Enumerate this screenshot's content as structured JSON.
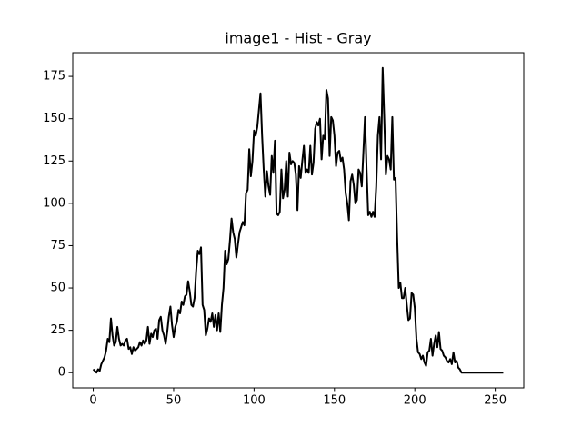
{
  "chart_data": {
    "type": "line",
    "title": "image1 - Hist - Gray",
    "x": [
      0,
      1,
      2,
      3,
      4,
      5,
      6,
      7,
      8,
      9,
      10,
      11,
      12,
      13,
      14,
      15,
      16,
      17,
      18,
      19,
      20,
      21,
      22,
      23,
      24,
      25,
      26,
      27,
      28,
      29,
      30,
      31,
      32,
      33,
      34,
      35,
      36,
      37,
      38,
      39,
      40,
      41,
      42,
      43,
      44,
      45,
      46,
      47,
      48,
      49,
      50,
      51,
      52,
      53,
      54,
      55,
      56,
      57,
      58,
      59,
      60,
      61,
      62,
      63,
      64,
      65,
      66,
      67,
      68,
      69,
      70,
      71,
      72,
      73,
      74,
      75,
      76,
      77,
      78,
      79,
      80,
      81,
      82,
      83,
      84,
      85,
      86,
      87,
      88,
      89,
      90,
      91,
      92,
      93,
      94,
      95,
      96,
      97,
      98,
      99,
      100,
      101,
      102,
      103,
      104,
      105,
      106,
      107,
      108,
      109,
      110,
      111,
      112,
      113,
      114,
      115,
      116,
      117,
      118,
      119,
      120,
      121,
      122,
      123,
      124,
      125,
      126,
      127,
      128,
      129,
      130,
      131,
      132,
      133,
      134,
      135,
      136,
      137,
      138,
      139,
      140,
      141,
      142,
      143,
      144,
      145,
      146,
      147,
      148,
      149,
      150,
      151,
      152,
      153,
      154,
      155,
      156,
      157,
      158,
      159,
      160,
      161,
      162,
      163,
      164,
      165,
      166,
      167,
      168,
      169,
      170,
      171,
      172,
      173,
      174,
      175,
      176,
      177,
      178,
      179,
      180,
      181,
      182,
      183,
      184,
      185,
      186,
      187,
      188,
      189,
      190,
      191,
      192,
      193,
      194,
      195,
      196,
      197,
      198,
      199,
      200,
      201,
      202,
      203,
      204,
      205,
      206,
      207,
      208,
      209,
      210,
      211,
      212,
      213,
      214,
      215,
      216,
      217,
      218,
      219,
      220,
      221,
      222,
      223,
      224,
      225,
      226,
      227,
      228,
      229,
      230,
      231,
      232,
      233,
      234,
      235,
      236,
      237,
      238,
      239,
      240,
      241,
      242,
      243,
      244,
      245,
      246,
      247,
      248,
      249,
      250,
      251,
      252,
      253,
      254,
      255
    ],
    "values": [
      2,
      1,
      0,
      2,
      1,
      5,
      7,
      9,
      13,
      20,
      18,
      32,
      22,
      16,
      18,
      27,
      20,
      16,
      17,
      16,
      19,
      20,
      14,
      15,
      11,
      15,
      13,
      14,
      15,
      18,
      16,
      19,
      17,
      19,
      27,
      17,
      23,
      21,
      25,
      26,
      20,
      31,
      33,
      25,
      22,
      17,
      24,
      33,
      39,
      28,
      21,
      27,
      30,
      37,
      35,
      42,
      40,
      45,
      46,
      54,
      48,
      40,
      39,
      44,
      60,
      72,
      70,
      74,
      40,
      37,
      22,
      26,
      32,
      30,
      35,
      27,
      34,
      25,
      35,
      24,
      40,
      50,
      72,
      64,
      67,
      78,
      91,
      83,
      79,
      68,
      76,
      83,
      86,
      89,
      87,
      106,
      108,
      132,
      116,
      125,
      143,
      140,
      145,
      155,
      165,
      140,
      120,
      104,
      119,
      110,
      105,
      128,
      118,
      137,
      94,
      93,
      95,
      120,
      103,
      108,
      125,
      104,
      130,
      123,
      125,
      124,
      117,
      96,
      122,
      115,
      125,
      134,
      118,
      120,
      118,
      134,
      117,
      124,
      144,
      148,
      146,
      150,
      126,
      140,
      138,
      167,
      162,
      128,
      151,
      149,
      140,
      122,
      130,
      131,
      125,
      127,
      120,
      106,
      100,
      90,
      113,
      117,
      111,
      100,
      102,
      120,
      118,
      110,
      130,
      151,
      120,
      93,
      95,
      92,
      95,
      92,
      110,
      140,
      151,
      126,
      180,
      150,
      117,
      128,
      126,
      120,
      151,
      114,
      115,
      80,
      50,
      53,
      44,
      44,
      50,
      40,
      31,
      32,
      47,
      46,
      38,
      20,
      12,
      11,
      8,
      10,
      6,
      4,
      12,
      13,
      20,
      10,
      17,
      22,
      15,
      24,
      14,
      13,
      10,
      9,
      7,
      6,
      8,
      5,
      12,
      6,
      7,
      3,
      2,
      0,
      0,
      0,
      0,
      0,
      0,
      0,
      0,
      0,
      0,
      0,
      0,
      0,
      0,
      0,
      0,
      0,
      0,
      0,
      0,
      0,
      0,
      0,
      0,
      0,
      0,
      0
    ],
    "color": "#000000",
    "xlim": [
      -12.75,
      267.75
    ],
    "xticks": [
      0,
      50,
      100,
      150,
      200,
      250
    ],
    "ylim": [
      -9,
      189
    ],
    "yticks": [
      0,
      25,
      50,
      75,
      100,
      125,
      150,
      175
    ]
  }
}
